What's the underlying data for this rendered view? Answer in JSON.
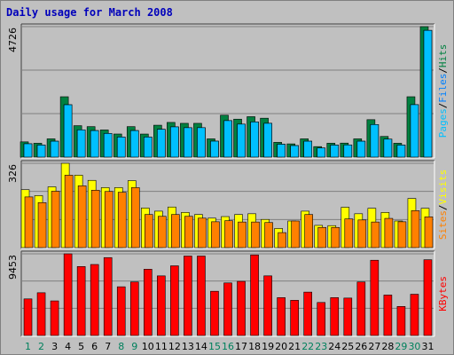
{
  "chart_data": {
    "type": "bar",
    "title": "Daily usage for March 2008",
    "categories": [
      "1",
      "2",
      "3",
      "4",
      "5",
      "6",
      "7",
      "8",
      "9",
      "10",
      "11",
      "12",
      "13",
      "14",
      "15",
      "16",
      "17",
      "18",
      "19",
      "20",
      "21",
      "22",
      "23",
      "24",
      "25",
      "26",
      "27",
      "28",
      "29",
      "30",
      "31"
    ],
    "weekend_days": [
      "1",
      "2",
      "8",
      "9",
      "15",
      "16",
      "22",
      "23",
      "29",
      "30"
    ],
    "colors": {
      "hits": "#008040",
      "files": "#0080ff",
      "pages": "#00c0ff",
      "visits": "#ffff00",
      "sites": "#ff8000",
      "kbytes": "#ff0000",
      "weekday_label": "#000000",
      "weekend_label": "#00805c",
      "panel_bg": "#c0c0c0",
      "title": "#0000bb"
    },
    "legend": {
      "panel1": [
        {
          "text": "Pages",
          "color": "#00c0ff"
        },
        {
          "text": "/",
          "color": "#000000"
        },
        {
          "text": "Files",
          "color": "#0080ff"
        },
        {
          "text": "/",
          "color": "#000000"
        },
        {
          "text": "Hits",
          "color": "#008040"
        }
      ],
      "panel2": [
        {
          "text": "Sites",
          "color": "#ff8000"
        },
        {
          "text": "/",
          "color": "#000000"
        },
        {
          "text": "Visits",
          "color": "#ffff00"
        }
      ],
      "panel3": [
        {
          "text": "KBytes",
          "color": "#ff0000"
        }
      ]
    },
    "panels": [
      {
        "ymax_label": "4726",
        "ylim": [
          0,
          4726
        ],
        "series": [
          {
            "name": "Hits",
            "values": [
              552,
              502,
              661,
              2186,
              1138,
              1104,
              983,
              836,
              1104,
              835,
              1155,
              1256,
              1223,
              1223,
              661,
              1518,
              1374,
              1464,
              1409,
              535,
              479,
              661,
              380,
              502,
              507,
              661,
              1356,
              748,
              502,
              2186,
              4726
            ]
          },
          {
            "name": "Files",
            "values": [
              483,
              436,
              576,
              1896,
              987,
              961,
              857,
              727,
              961,
              727,
              1007,
              1095,
              1065,
              1066,
              578,
              1321,
              1195,
              1274,
              1224,
              466,
              417,
              576,
              330,
              436,
              441,
              576,
              1179,
              651,
              436,
              1899,
              4591
            ]
          },
          {
            "name": "Pages",
            "values": [
              483,
              436,
              576,
              1896,
              987,
              961,
              857,
              727,
              961,
              727,
              1007,
              1095,
              1065,
              1066,
              578,
              1321,
              1195,
              1274,
              1224,
              466,
              417,
              576,
              330,
              436,
              441,
              576,
              1179,
              651,
              436,
              1899,
              4591
            ]
          }
        ]
      },
      {
        "ymax_label": "326",
        "ylim": [
          0,
          326
        ],
        "series": [
          {
            "name": "Visits",
            "values": [
              224,
              201,
              235,
              326,
              280,
              260,
              232,
              232,
              259,
              153,
              141,
              157,
              136,
              128,
              114,
              120,
              128,
              131,
              109,
              74,
              103,
              141,
              86,
              85,
              156,
              131,
              152,
              136,
              103,
              190,
              152
            ]
          },
          {
            "name": "Sites",
            "values": [
              196,
              174,
              218,
              280,
              239,
              222,
              217,
              214,
              232,
              128,
              121,
              128,
              121,
              114,
              100,
              104,
              99,
              99,
              97,
              58,
              103,
              128,
              78,
              78,
              111,
              107,
              99,
              113,
              100,
              143,
              119
            ]
          }
        ]
      },
      {
        "ymax_label": "9453",
        "ylim": [
          0,
          9453
        ],
        "series": [
          {
            "name": "KBytes",
            "values": [
              4234,
              4946,
              4003,
              9453,
              7983,
              8219,
              9015,
              5637,
              6193,
              7669,
              6900,
              8065,
              9198,
              9197,
              5119,
              6085,
              6264,
              9326,
              6903,
              4382,
              4071,
              5022,
              3820,
              4382,
              4331,
              6193,
              8711,
              4682,
              3359,
              4774,
              8768
            ]
          }
        ]
      }
    ]
  }
}
